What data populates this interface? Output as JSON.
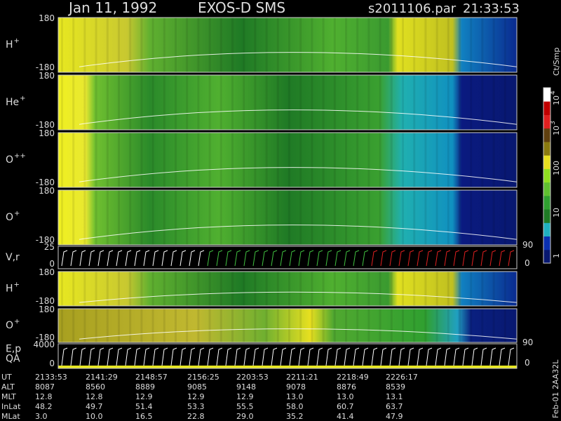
{
  "header": {
    "date": "Jan 11, 1992",
    "instrument": "EXOS-D SMS",
    "file": "s2011106.par",
    "time": "21:33:53"
  },
  "panels": [
    {
      "label": "H",
      "sup": "+",
      "top": "180",
      "bottom": "-180"
    },
    {
      "label": "He",
      "sup": "+",
      "top": "180",
      "bottom": "-180"
    },
    {
      "label": "O",
      "sup": "++",
      "top": "180",
      "bottom": "-180"
    },
    {
      "label": "O",
      "sup": "+",
      "top": "180",
      "bottom": "-180"
    },
    {
      "label": "V,r",
      "top": "25",
      "bottom": "0",
      "right_top": "90",
      "right_bottom": "0"
    },
    {
      "label": "H",
      "sup": "+",
      "top": "180",
      "bottom": "-180"
    },
    {
      "label": "O",
      "sup": "+",
      "top": "180",
      "bottom": "-180"
    },
    {
      "label": "E,p",
      "label2": "QA",
      "top": "4000",
      "bottom": "0",
      "right_top": "90",
      "right_bottom": "0"
    }
  ],
  "colorbar": {
    "title": "Ct/Smp",
    "labels": [
      {
        "base": "10",
        "exp": "4"
      },
      {
        "base": "10",
        "exp": "3"
      },
      {
        "base": "100"
      },
      {
        "base": "10"
      },
      {
        "base": "1"
      }
    ]
  },
  "table": {
    "rows": [
      {
        "label": "UT",
        "values": [
          "2133:53",
          "2141:29",
          "2148:57",
          "2156:25",
          "2203:53",
          "2211:21",
          "2218:49",
          "2226:17"
        ]
      },
      {
        "label": "ALT",
        "values": [
          "8087",
          "8560",
          "8889",
          "9085",
          "9148",
          "9078",
          "8876",
          "8539"
        ]
      },
      {
        "label": "MLT",
        "values": [
          "12.8",
          "12.8",
          "12.9",
          "12.9",
          "12.9",
          "13.0",
          "13.0",
          "13.1"
        ]
      },
      {
        "label": "InLat",
        "values": [
          "48.2",
          "49.7",
          "51.4",
          "53.3",
          "55.5",
          "58.0",
          "60.7",
          "63.7"
        ]
      },
      {
        "label": "MLat",
        "values": [
          "3.0",
          "10.0",
          "16.5",
          "22.8",
          "29.0",
          "35.2",
          "41.4",
          "47.9"
        ]
      }
    ]
  },
  "footer_id": "Feb-01 2AA32L"
}
